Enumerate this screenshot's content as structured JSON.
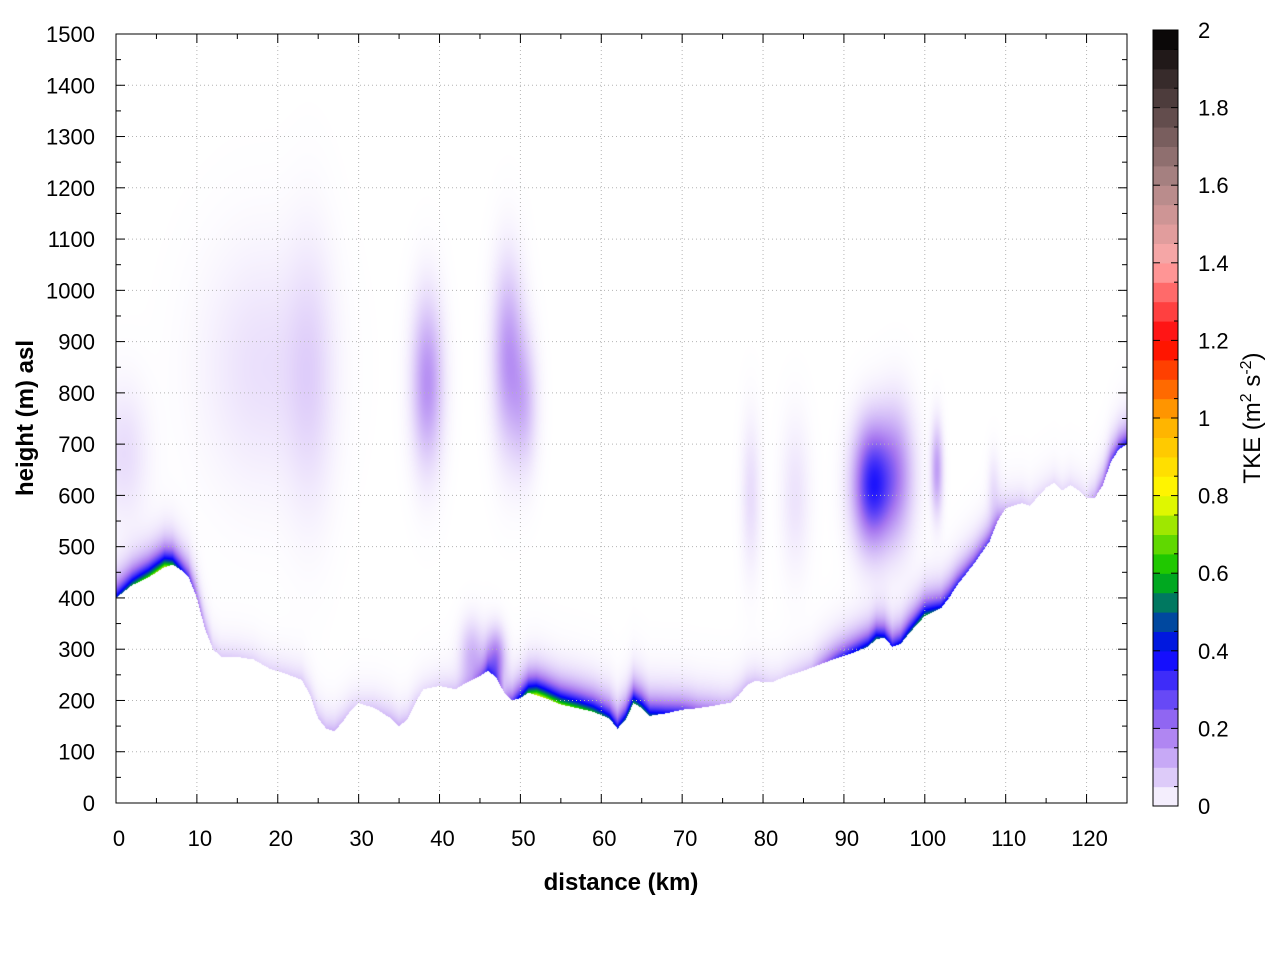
{
  "chart_data": {
    "type": "heatmap",
    "title": "",
    "xlabel": "distance (km)",
    "ylabel": "height (m) asl",
    "xlim": [
      0,
      125
    ],
    "ylim": [
      0,
      1500
    ],
    "x_ticks": [
      0,
      10,
      20,
      30,
      40,
      50,
      60,
      70,
      80,
      90,
      100,
      110,
      120
    ],
    "y_ticks": [
      0,
      100,
      200,
      300,
      400,
      500,
      600,
      700,
      800,
      900,
      1000,
      1100,
      1200,
      1300,
      1400,
      1500
    ],
    "grid": true,
    "colorbar": {
      "label_prefix": "TKE (m",
      "label_exp1": "2",
      "label_mid": " s",
      "label_exp2": "-2",
      "label_suffix": ")",
      "range": [
        0,
        2
      ],
      "ticks": [
        "0",
        "0.2",
        "0.4",
        "0.6",
        "0.8",
        "1",
        "1.2",
        "1.4",
        "1.6",
        "1.8",
        "2"
      ],
      "colormap": [
        [
          0.0,
          "#ffffff"
        ],
        [
          0.1,
          "#a575f0"
        ],
        [
          0.2,
          "#0000ff"
        ],
        [
          0.3,
          "#00c000"
        ],
        [
          0.4,
          "#ffff00"
        ],
        [
          0.5,
          "#ffaa00"
        ],
        [
          0.6,
          "#ff0000"
        ],
        [
          0.7,
          "#ffaaaa"
        ],
        [
          0.8,
          "#b08888"
        ],
        [
          1.0,
          "#000000"
        ]
      ]
    },
    "terrain_km_m": [
      [
        0,
        400
      ],
      [
        2,
        425
      ],
      [
        4,
        440
      ],
      [
        6,
        460
      ],
      [
        7,
        465
      ],
      [
        8,
        455
      ],
      [
        9,
        440
      ],
      [
        10,
        400
      ],
      [
        11,
        340
      ],
      [
        12,
        300
      ],
      [
        13,
        285
      ],
      [
        15,
        285
      ],
      [
        17,
        280
      ],
      [
        19,
        262
      ],
      [
        21,
        252
      ],
      [
        23,
        240
      ],
      [
        24,
        210
      ],
      [
        25,
        165
      ],
      [
        26,
        145
      ],
      [
        27,
        140
      ],
      [
        28,
        158
      ],
      [
        29,
        180
      ],
      [
        30,
        195
      ],
      [
        32,
        185
      ],
      [
        34,
        165
      ],
      [
        35,
        150
      ],
      [
        36,
        162
      ],
      [
        37,
        195
      ],
      [
        38,
        222
      ],
      [
        40,
        228
      ],
      [
        42,
        222
      ],
      [
        43,
        232
      ],
      [
        45,
        248
      ],
      [
        46,
        258
      ],
      [
        47,
        245
      ],
      [
        48,
        215
      ],
      [
        49,
        200
      ],
      [
        50,
        205
      ],
      [
        51,
        215
      ],
      [
        53,
        205
      ],
      [
        55,
        192
      ],
      [
        57,
        185
      ],
      [
        59,
        178
      ],
      [
        61,
        165
      ],
      [
        62,
        145
      ],
      [
        63,
        162
      ],
      [
        64,
        195
      ],
      [
        65,
        185
      ],
      [
        66,
        170
      ],
      [
        68,
        175
      ],
      [
        70,
        182
      ],
      [
        72,
        185
      ],
      [
        74,
        190
      ],
      [
        76,
        196
      ],
      [
        77,
        210
      ],
      [
        78,
        230
      ],
      [
        79,
        238
      ],
      [
        81,
        235
      ],
      [
        83,
        248
      ],
      [
        85,
        258
      ],
      [
        87,
        270
      ],
      [
        89,
        282
      ],
      [
        91,
        292
      ],
      [
        93,
        305
      ],
      [
        94,
        320
      ],
      [
        95,
        322
      ],
      [
        96,
        305
      ],
      [
        97,
        310
      ],
      [
        98,
        330
      ],
      [
        100,
        365
      ],
      [
        102,
        380
      ],
      [
        103,
        400
      ],
      [
        104,
        425
      ],
      [
        106,
        465
      ],
      [
        108,
        510
      ],
      [
        109,
        550
      ],
      [
        110,
        575
      ],
      [
        112,
        585
      ],
      [
        113,
        580
      ],
      [
        115,
        615
      ],
      [
        116,
        625
      ],
      [
        117,
        610
      ],
      [
        118,
        620
      ],
      [
        119,
        610
      ],
      [
        120,
        595
      ],
      [
        121,
        595
      ],
      [
        122,
        620
      ],
      [
        123,
        665
      ],
      [
        124,
        690
      ],
      [
        125,
        700
      ]
    ],
    "surface_tke_km": [
      [
        0,
        0.45
      ],
      [
        3,
        0.62
      ],
      [
        6,
        0.75
      ],
      [
        8,
        0.42
      ],
      [
        10,
        0.22
      ],
      [
        12,
        0.08
      ],
      [
        18,
        0.06
      ],
      [
        24,
        0.08
      ],
      [
        27,
        0.12
      ],
      [
        30,
        0.06
      ],
      [
        35,
        0.12
      ],
      [
        38,
        0.05
      ],
      [
        44,
        0.1
      ],
      [
        46,
        0.28
      ],
      [
        48,
        0.1
      ],
      [
        50,
        0.45
      ],
      [
        52,
        0.78
      ],
      [
        54,
        0.72
      ],
      [
        57,
        0.66
      ],
      [
        60,
        0.55
      ],
      [
        62,
        0.45
      ],
      [
        64,
        0.58
      ],
      [
        66,
        0.5
      ],
      [
        69,
        0.34
      ],
      [
        72,
        0.2
      ],
      [
        75,
        0.12
      ],
      [
        78,
        0.1
      ],
      [
        82,
        0.06
      ],
      [
        86,
        0.1
      ],
      [
        89,
        0.3
      ],
      [
        91,
        0.42
      ],
      [
        94,
        0.52
      ],
      [
        96,
        0.4
      ],
      [
        98,
        0.5
      ],
      [
        100,
        0.58
      ],
      [
        102,
        0.44
      ],
      [
        104,
        0.36
      ],
      [
        106,
        0.32
      ],
      [
        108,
        0.3
      ],
      [
        110,
        0.1
      ],
      [
        115,
        0.05
      ],
      [
        120,
        0.06
      ],
      [
        123,
        0.3
      ],
      [
        125,
        0.4
      ]
    ],
    "blobs": [
      {
        "x": 93.5,
        "y": 620,
        "sx": 1.6,
        "sy": 80,
        "v": 0.34
      },
      {
        "x": 96.5,
        "y": 640,
        "sx": 1.5,
        "sy": 90,
        "v": 0.16
      },
      {
        "x": 101.5,
        "y": 650,
        "sx": 0.5,
        "sy": 60,
        "v": 0.14
      },
      {
        "x": 38.5,
        "y": 820,
        "sx": 1.3,
        "sy": 110,
        "v": 0.16
      },
      {
        "x": 48.5,
        "y": 870,
        "sx": 1.3,
        "sy": 120,
        "v": 0.15
      },
      {
        "x": 50.5,
        "y": 780,
        "sx": 1.1,
        "sy": 90,
        "v": 0.09
      },
      {
        "x": 18,
        "y": 850,
        "sx": 5,
        "sy": 160,
        "v": 0.045
      },
      {
        "x": 24,
        "y": 830,
        "sx": 2,
        "sy": 180,
        "v": 0.05
      },
      {
        "x": 1,
        "y": 680,
        "sx": 2,
        "sy": 90,
        "v": 0.05
      },
      {
        "x": 47,
        "y": 280,
        "sx": 0.8,
        "sy": 40,
        "v": 0.18
      },
      {
        "x": 44,
        "y": 290,
        "sx": 1.0,
        "sy": 45,
        "v": 0.1
      },
      {
        "x": 78.5,
        "y": 600,
        "sx": 0.8,
        "sy": 100,
        "v": 0.05
      },
      {
        "x": 84,
        "y": 600,
        "sx": 1.2,
        "sy": 100,
        "v": 0.04
      },
      {
        "x": 108.5,
        "y": 610,
        "sx": 0.5,
        "sy": 50,
        "v": 0.04
      }
    ]
  }
}
